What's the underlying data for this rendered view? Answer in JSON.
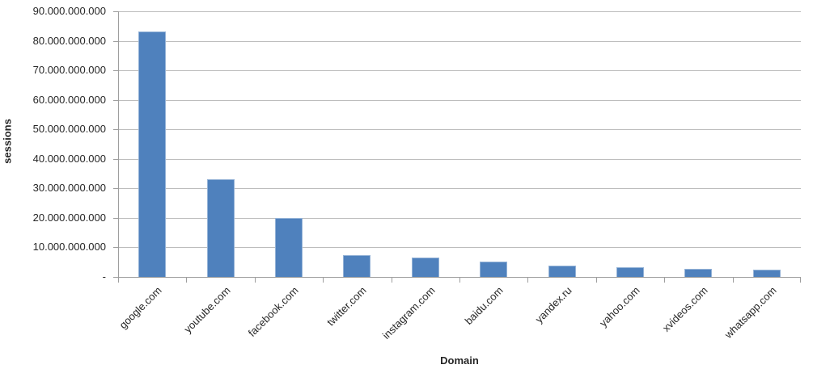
{
  "chart_data": {
    "type": "bar",
    "title": "",
    "xlabel": "Domain",
    "ylabel": "sessions",
    "categories": [
      "google.com",
      "youtube.com",
      "facebook.com",
      "twitter.com",
      "instagram.com",
      "baidu.com",
      "yandex.ru",
      "yahoo.com",
      "xvideos.com",
      "whatsapp.com"
    ],
    "values": [
      83100000000,
      33100000000,
      20000000000,
      7300000000,
      6600000000,
      5100000000,
      3700000000,
      3300000000,
      2800000000,
      2500000000
    ],
    "ylim": [
      0,
      90000000000
    ],
    "y_tick_interval": 10000000000,
    "y_tick_labels": [
      "-",
      "10.000.000.000",
      "20.000.000.000",
      "30.000.000.000",
      "40.000.000.000",
      "50.000.000.000",
      "60.000.000.000",
      "70.000.000.000",
      "80.000.000.000",
      "90.000.000.000"
    ],
    "grid": true,
    "legend": false,
    "x_label_rotation_deg": -45,
    "colors": {
      "bar_fill": "#4F81BD",
      "bar_border": "#95B3D7",
      "gridline": "#BDBDBD",
      "axis": "#9E9E9E",
      "text": "#262626"
    }
  }
}
